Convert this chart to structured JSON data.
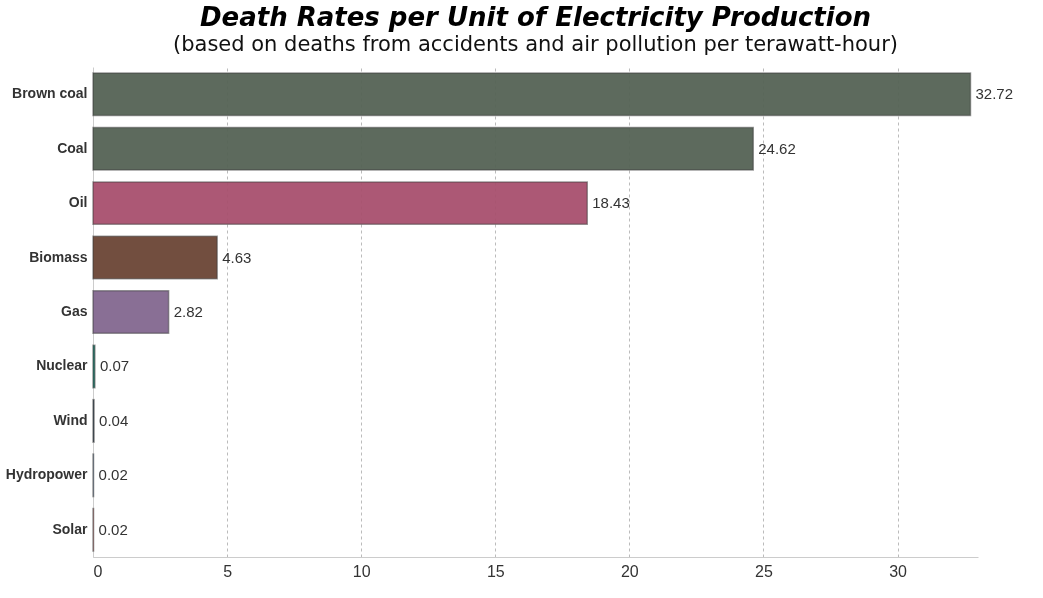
{
  "chart_data": {
    "type": "bar",
    "orientation": "horizontal",
    "title": "Death Rates per Unit of Electricity Production",
    "subtitle": "(based on deaths from accidents and air pollution per terawatt-hour)",
    "categories": [
      "Brown coal",
      "Coal",
      "Oil",
      "Biomass",
      "Gas",
      "Nuclear",
      "Wind",
      "Hydropower",
      "Solar"
    ],
    "values": [
      32.72,
      24.62,
      18.43,
      4.63,
      2.82,
      0.07,
      0.04,
      0.02,
      0.02
    ],
    "colors": [
      "#556355",
      "#556355",
      "#a8506e",
      "#6b4535",
      "#836890",
      "#1a7a6a",
      "#3a4a5a",
      "#5a7a9a",
      "#c06060"
    ],
    "xlim": [
      0,
      33
    ],
    "xticks": [
      0,
      5,
      10,
      15,
      20,
      25,
      30
    ],
    "grid": "x",
    "data_labels": true
  }
}
